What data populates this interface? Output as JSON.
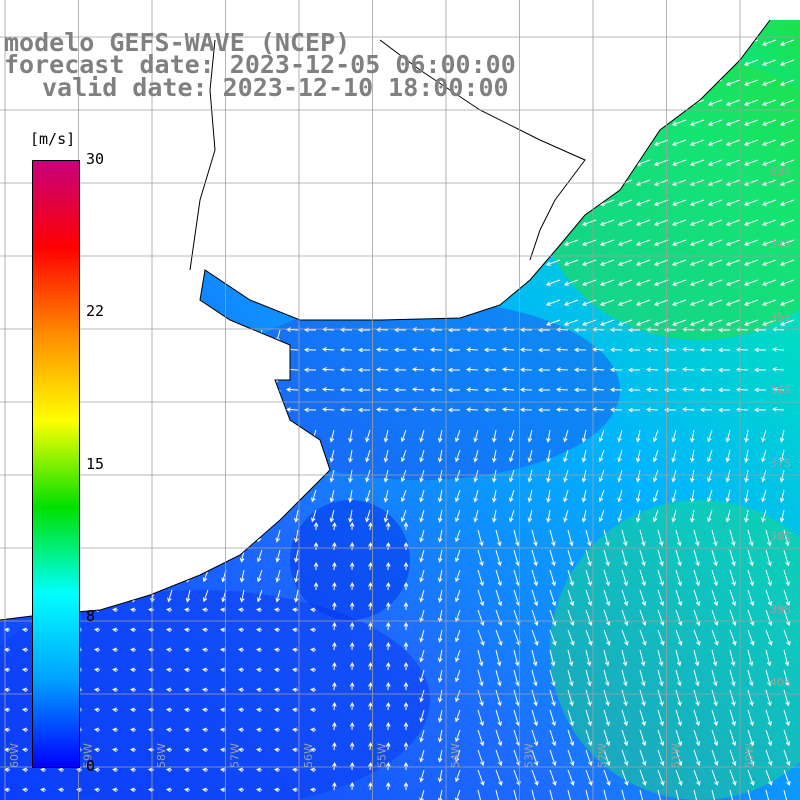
{
  "title": {
    "line1": "modelo GEFS-WAVE (NCEP)",
    "line2": "forecast date: 2023-12-05 06:00:00",
    "line3": "valid date: 2023-12-10 18:00:00"
  },
  "colorbar": {
    "unit": "[m/s]",
    "ticks": [
      "30",
      "22",
      "15",
      "8",
      "0"
    ],
    "colors": [
      "#c8007d",
      "#ff0000",
      "#ff8c00",
      "#ffff00",
      "#00e000",
      "#00ffff",
      "#00a0ff",
      "#0000ff"
    ]
  },
  "map": {
    "lat_labels": [
      "33S",
      "34S",
      "35S",
      "36S",
      "37S",
      "38S",
      "39S",
      "40S"
    ],
    "lon_labels": [
      "60W",
      "59W",
      "58W",
      "57W",
      "56W",
      "55W",
      "54W",
      "53W",
      "52W",
      "51W",
      "50W"
    ],
    "land_color": "#ffffff",
    "grid_color": "#a0a0a0",
    "arrow_color": "#ffffff"
  }
}
